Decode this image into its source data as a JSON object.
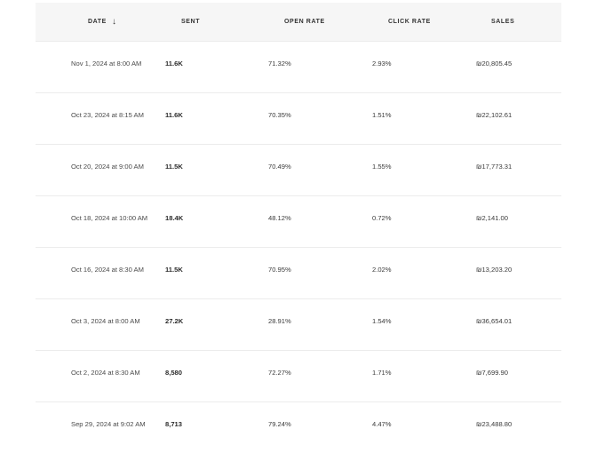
{
  "table": {
    "columns": {
      "date": "DATE",
      "sent": "SENT",
      "open_rate": "OPEN RATE",
      "click_rate": "CLICK RATE",
      "sales": "SALES"
    },
    "sort_icon": "arrow-down-icon",
    "rows": [
      {
        "date": "Nov 1, 2024 at 8:00 AM",
        "sent": "11.6K",
        "open_rate": "71.32%",
        "click_rate": "2.93%",
        "sales": "₪20,805.45"
      },
      {
        "date": "Oct 23, 2024 at 8:15 AM",
        "sent": "11.6K",
        "open_rate": "70.35%",
        "click_rate": "1.51%",
        "sales": "₪22,102.61"
      },
      {
        "date": "Oct 20, 2024 at 9:00 AM",
        "sent": "11.5K",
        "open_rate": "70.49%",
        "click_rate": "1.55%",
        "sales": "₪17,773.31"
      },
      {
        "date": "Oct 18, 2024 at 10:00 AM",
        "sent": "18.4K",
        "open_rate": "48.12%",
        "click_rate": "0.72%",
        "sales": "₪2,141.00"
      },
      {
        "date": "Oct 16, 2024 at 8:30 AM",
        "sent": "11.5K",
        "open_rate": "70.95%",
        "click_rate": "2.02%",
        "sales": "₪13,203.20"
      },
      {
        "date": "Oct 3, 2024 at 8:00 AM",
        "sent": "27.2K",
        "open_rate": "28.91%",
        "click_rate": "1.54%",
        "sales": "₪36,654.01"
      },
      {
        "date": "Oct 2, 2024 at 8:30 AM",
        "sent": "8,580",
        "open_rate": "72.27%",
        "click_rate": "1.71%",
        "sales": "₪7,699.90"
      },
      {
        "date": "Sep 29, 2024 at 9:02 AM",
        "sent": "8,713",
        "open_rate": "79.24%",
        "click_rate": "4.47%",
        "sales": "₪23,488.80"
      }
    ]
  }
}
